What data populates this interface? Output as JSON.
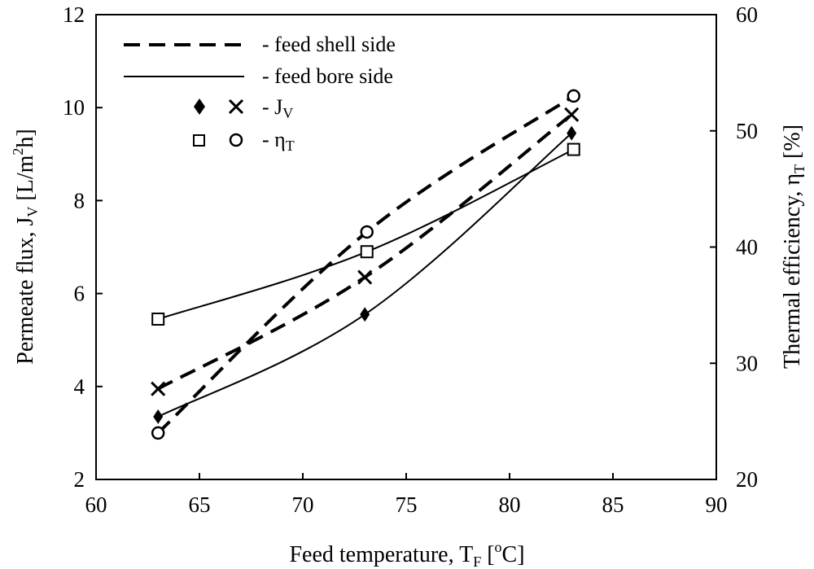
{
  "chart_data": {
    "type": "line",
    "x_title": {
      "main": "Feed temperature, T",
      "sub": "F",
      "rest": " [",
      "sup": "o",
      "end": "C]"
    },
    "y_left_title": {
      "main": "Permeate flux, J",
      "sub": "V",
      "rest": " [L/m",
      "sup": "2",
      "end": "h]"
    },
    "y_right_title": {
      "main": "Thermal efficiency, η",
      "sub": "T",
      "rest": " [%]"
    },
    "x_range": [
      60,
      90
    ],
    "x_ticks": [
      "60",
      "65",
      "70",
      "75",
      "80",
      "85",
      "90"
    ],
    "y_left_range": [
      2,
      12
    ],
    "y_left_ticks": [
      "2",
      "4",
      "6",
      "8",
      "10",
      "12"
    ],
    "y_right_range": [
      20,
      60
    ],
    "y_right_ticks": [
      "20",
      "30",
      "40",
      "50",
      "60"
    ],
    "legend": {
      "shell_label": "- feed shell side",
      "bore_label": "- feed bore side",
      "jv_prefix": "- J",
      "jv_sub": "V",
      "eta_prefix": "- η",
      "eta_sub": "T"
    },
    "series": [
      {
        "name": "Jv feed shell side",
        "axis": "left",
        "line": "dashed",
        "marker": "x",
        "x": [
          63,
          73,
          83
        ],
        "y": [
          3.95,
          6.35,
          9.85
        ]
      },
      {
        "name": "Jv feed bore side",
        "axis": "left",
        "line": "solid",
        "marker": "diamond",
        "x": [
          63,
          73,
          83
        ],
        "y": [
          3.35,
          5.55,
          9.45
        ]
      },
      {
        "name": "ηT feed shell side",
        "axis": "right",
        "line": "dashed",
        "marker": "circle",
        "x": [
          63,
          73.1,
          83.1
        ],
        "y": [
          24.0,
          41.3,
          53.0
        ]
      },
      {
        "name": "ηT feed bore side",
        "axis": "right",
        "line": "solid",
        "marker": "square",
        "x": [
          63,
          73.1,
          83.1
        ],
        "y": [
          33.8,
          39.6,
          48.4
        ]
      }
    ]
  }
}
